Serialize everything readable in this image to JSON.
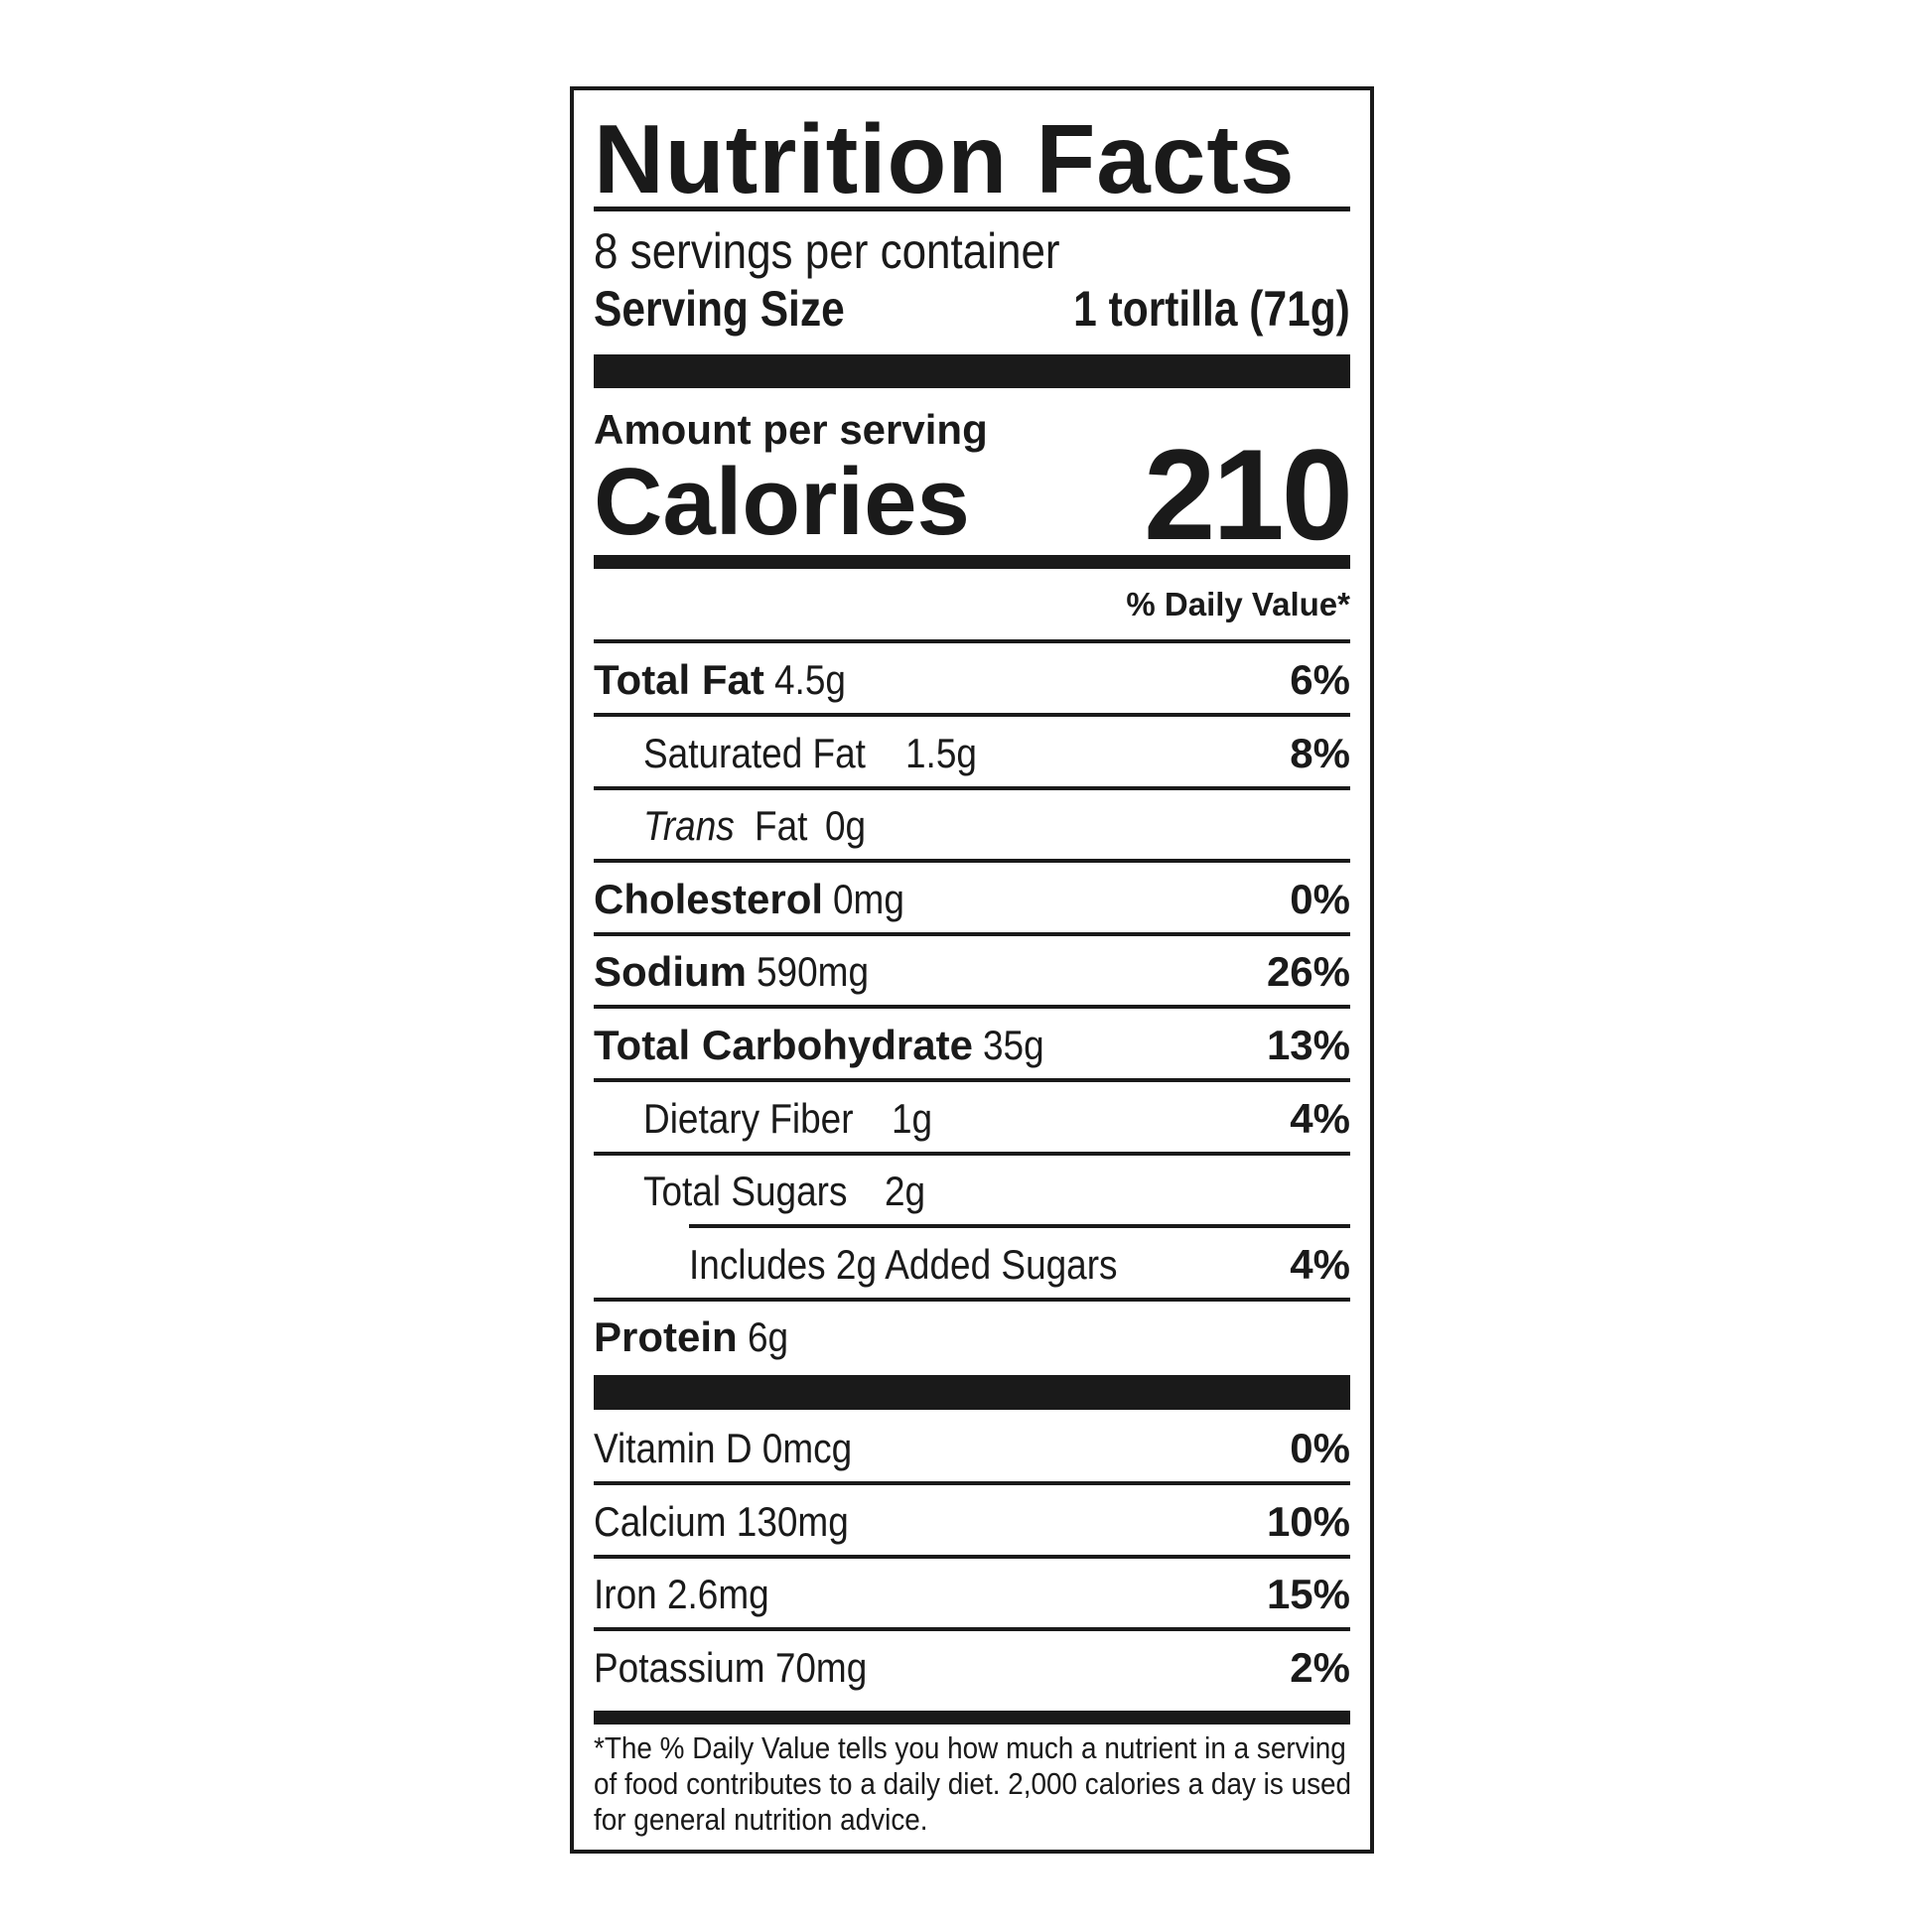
{
  "title": "Nutrition Facts",
  "servings_per_container": "8 servings per container",
  "serving_size": {
    "label": "Serving Size",
    "value": "1 tortilla (71g)"
  },
  "amount_per_serving": "Amount per serving",
  "calories": {
    "label": "Calories",
    "value": "210"
  },
  "daily_value_header": "% Daily Value*",
  "nutrients": [
    {
      "name": "Total Fat",
      "amount": "4.5g",
      "dv": "6%",
      "bold": true,
      "indent": 0
    },
    {
      "name": "Saturated Fat",
      "amount": "1.5g",
      "dv": "8%",
      "bold": false,
      "indent": 1
    },
    {
      "name": "Trans",
      "name_suffix": "Fat",
      "amount": "0g",
      "dv": "",
      "bold": false,
      "italic": true,
      "indent": 1
    },
    {
      "name": "Cholesterol",
      "amount": "0mg",
      "dv": "0%",
      "bold": true,
      "indent": 0
    },
    {
      "name": "Sodium",
      "amount": "590mg",
      "dv": "26%",
      "bold": true,
      "indent": 0
    },
    {
      "name": "Total Carbohydrate",
      "amount": "35g",
      "dv": "13%",
      "bold": true,
      "indent": 0
    },
    {
      "name": "Dietary Fiber",
      "amount": "1g",
      "dv": "4%",
      "bold": false,
      "indent": 1
    },
    {
      "name": "Total Sugars",
      "amount": "2g",
      "dv": "",
      "bold": false,
      "indent": 1
    },
    {
      "name": "Includes 2g Added Sugars",
      "amount": "",
      "dv": "4%",
      "bold": false,
      "indent": 2
    },
    {
      "name": "Protein",
      "amount": "6g",
      "dv": "",
      "bold": true,
      "indent": 0
    }
  ],
  "vitamins": [
    {
      "name": "Vitamin D 0mcg",
      "dv": "0%"
    },
    {
      "name": "Calcium 130mg",
      "dv": "10%"
    },
    {
      "name": "Iron 2.6mg",
      "dv": "15%"
    },
    {
      "name": "Potassium 70mg",
      "dv": "2%"
    }
  ],
  "footnote": "*The % Daily Value tells you how much a nutrient in a serving of food contributes to a daily diet. 2,000 calories a day is used for general nutrition advice.",
  "colors": {
    "ink": "#1a1a1a",
    "background": "#ffffff"
  }
}
